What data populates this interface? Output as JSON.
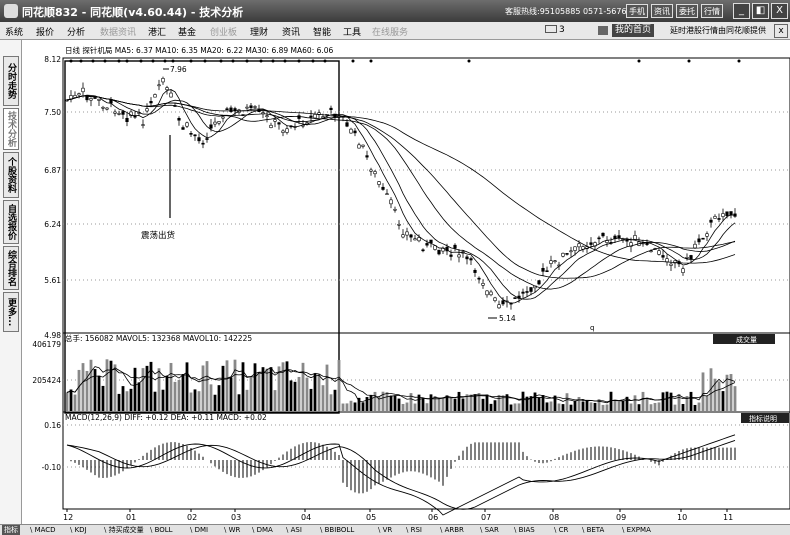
{
  "window": {
    "title": "同花顺832 - 同花顺(v4.60.44) - 技术分析",
    "hotline": "客服热线:95105885 0571-56768888",
    "buttons": [
      "手机",
      "资讯",
      "委托",
      "行情"
    ],
    "controls": [
      "_",
      "◧",
      "X"
    ]
  },
  "menu": {
    "items": [
      {
        "label": "系统",
        "dim": false
      },
      {
        "label": "报价",
        "dim": false
      },
      {
        "label": "分析",
        "dim": false
      },
      {
        "label": "数据资讯",
        "dim": true
      },
      {
        "label": "港汇",
        "dim": false
      },
      {
        "label": "基金",
        "dim": false
      },
      {
        "label": "创业板",
        "dim": true
      },
      {
        "label": "理财",
        "dim": false
      },
      {
        "label": "资讯",
        "dim": false
      },
      {
        "label": "智能",
        "dim": false
      },
      {
        "label": "工具",
        "dim": false
      },
      {
        "label": "在线服务",
        "dim": true
      }
    ],
    "mail_count": "3",
    "my_home": "我的首页",
    "hk_text": "延时港股行情由同花顺提供",
    "close": "x"
  },
  "left_tabs": [
    {
      "label": "分时走势",
      "active": false
    },
    {
      "label": "技术分析",
      "active": true
    },
    {
      "label": "个股资料",
      "active": false
    },
    {
      "label": "自选报价",
      "active": false
    },
    {
      "label": "综合排名",
      "active": false
    },
    {
      "label": "更多...",
      "active": false
    }
  ],
  "kline_panel": {
    "header": "日线  探针机局 MA5: 6.37 MA10: 6.35 MA20: 6.22 MA30: 6.89 MA60: 6.06",
    "price_ticks": [
      "8.12",
      "7.50",
      "6.87",
      "6.24",
      "5.61",
      "4.98"
    ],
    "high_label": "7.96",
    "low_label": "5.14",
    "annotation": "震荡出货",
    "small_mark": "q"
  },
  "volume_panel": {
    "header": "总手: 156082 MAVOL5: 132368 MAVOL10: 142225",
    "ticks": [
      "406179",
      "205424"
    ],
    "button": "成交量"
  },
  "macd_panel": {
    "header": "MACD(12,26,9) DIFF: +0.12 DEA: +0.11 MACD: +0.02",
    "ticks": [
      "0.16",
      "-0.10"
    ],
    "button": "指标说明"
  },
  "x_axis": {
    "labels": [
      "12",
      "01",
      "02",
      "03",
      "04",
      "05",
      "06",
      "07",
      "08",
      "09",
      "10",
      "11"
    ]
  },
  "bottom_tabs": [
    "指标",
    "MACD",
    "KDJ",
    "持买成交量",
    "BOLL",
    "DMI",
    "WR",
    "DMA",
    "ASI",
    "BBIBOLL",
    "VR",
    "RSI",
    "ARBR",
    "SAR",
    "BIAS",
    "CR",
    "BETA",
    "EXPMA"
  ],
  "colors": {
    "line": "#000000",
    "gray": "#888888",
    "bg": "#ffffff"
  }
}
